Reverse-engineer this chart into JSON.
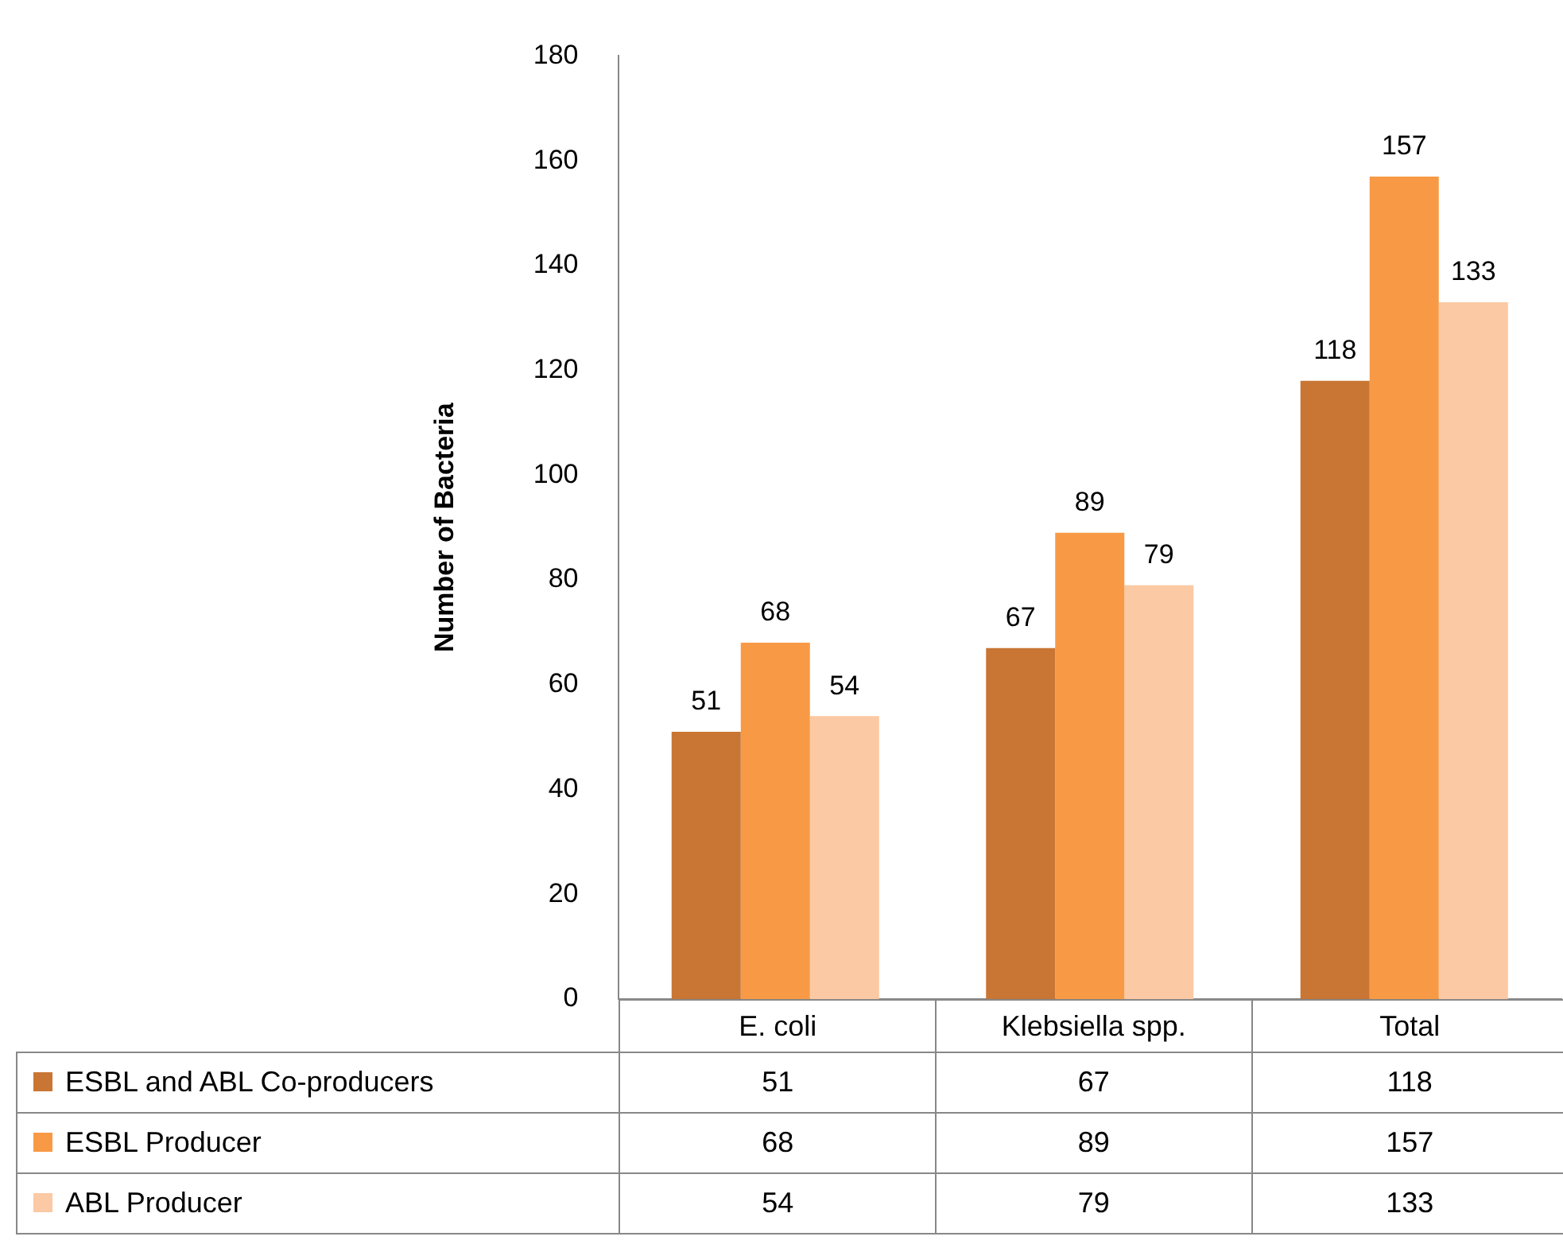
{
  "chart_data": {
    "type": "bar",
    "ylabel": "Number of Bacteria",
    "categories": [
      "E. coli",
      "Klebsiella spp.",
      "Total"
    ],
    "series": [
      {
        "name": "ESBL and ABL Co-producers",
        "color": "#c97634",
        "values": [
          51,
          67,
          118
        ],
        "value_labels": [
          "51",
          "67",
          "118"
        ]
      },
      {
        "name": "ESBL Producer",
        "color": "#f89a45",
        "values": [
          68,
          89,
          157
        ],
        "value_labels": [
          "68",
          "89",
          "157"
        ]
      },
      {
        "name": "ABL Producer",
        "color": "#fbc9a3",
        "values": [
          54,
          79,
          133
        ],
        "value_labels": [
          "54",
          "79",
          "133"
        ]
      }
    ],
    "annotations": [
      "51",
      "67",
      "118",
      "68",
      "89",
      "157",
      "54",
      "79",
      "133"
    ],
    "ylim": [
      0,
      180
    ],
    "yticks": [
      0,
      20,
      40,
      60,
      80,
      100,
      120,
      140,
      160,
      180
    ],
    "grid": false,
    "legend": "bottom"
  }
}
